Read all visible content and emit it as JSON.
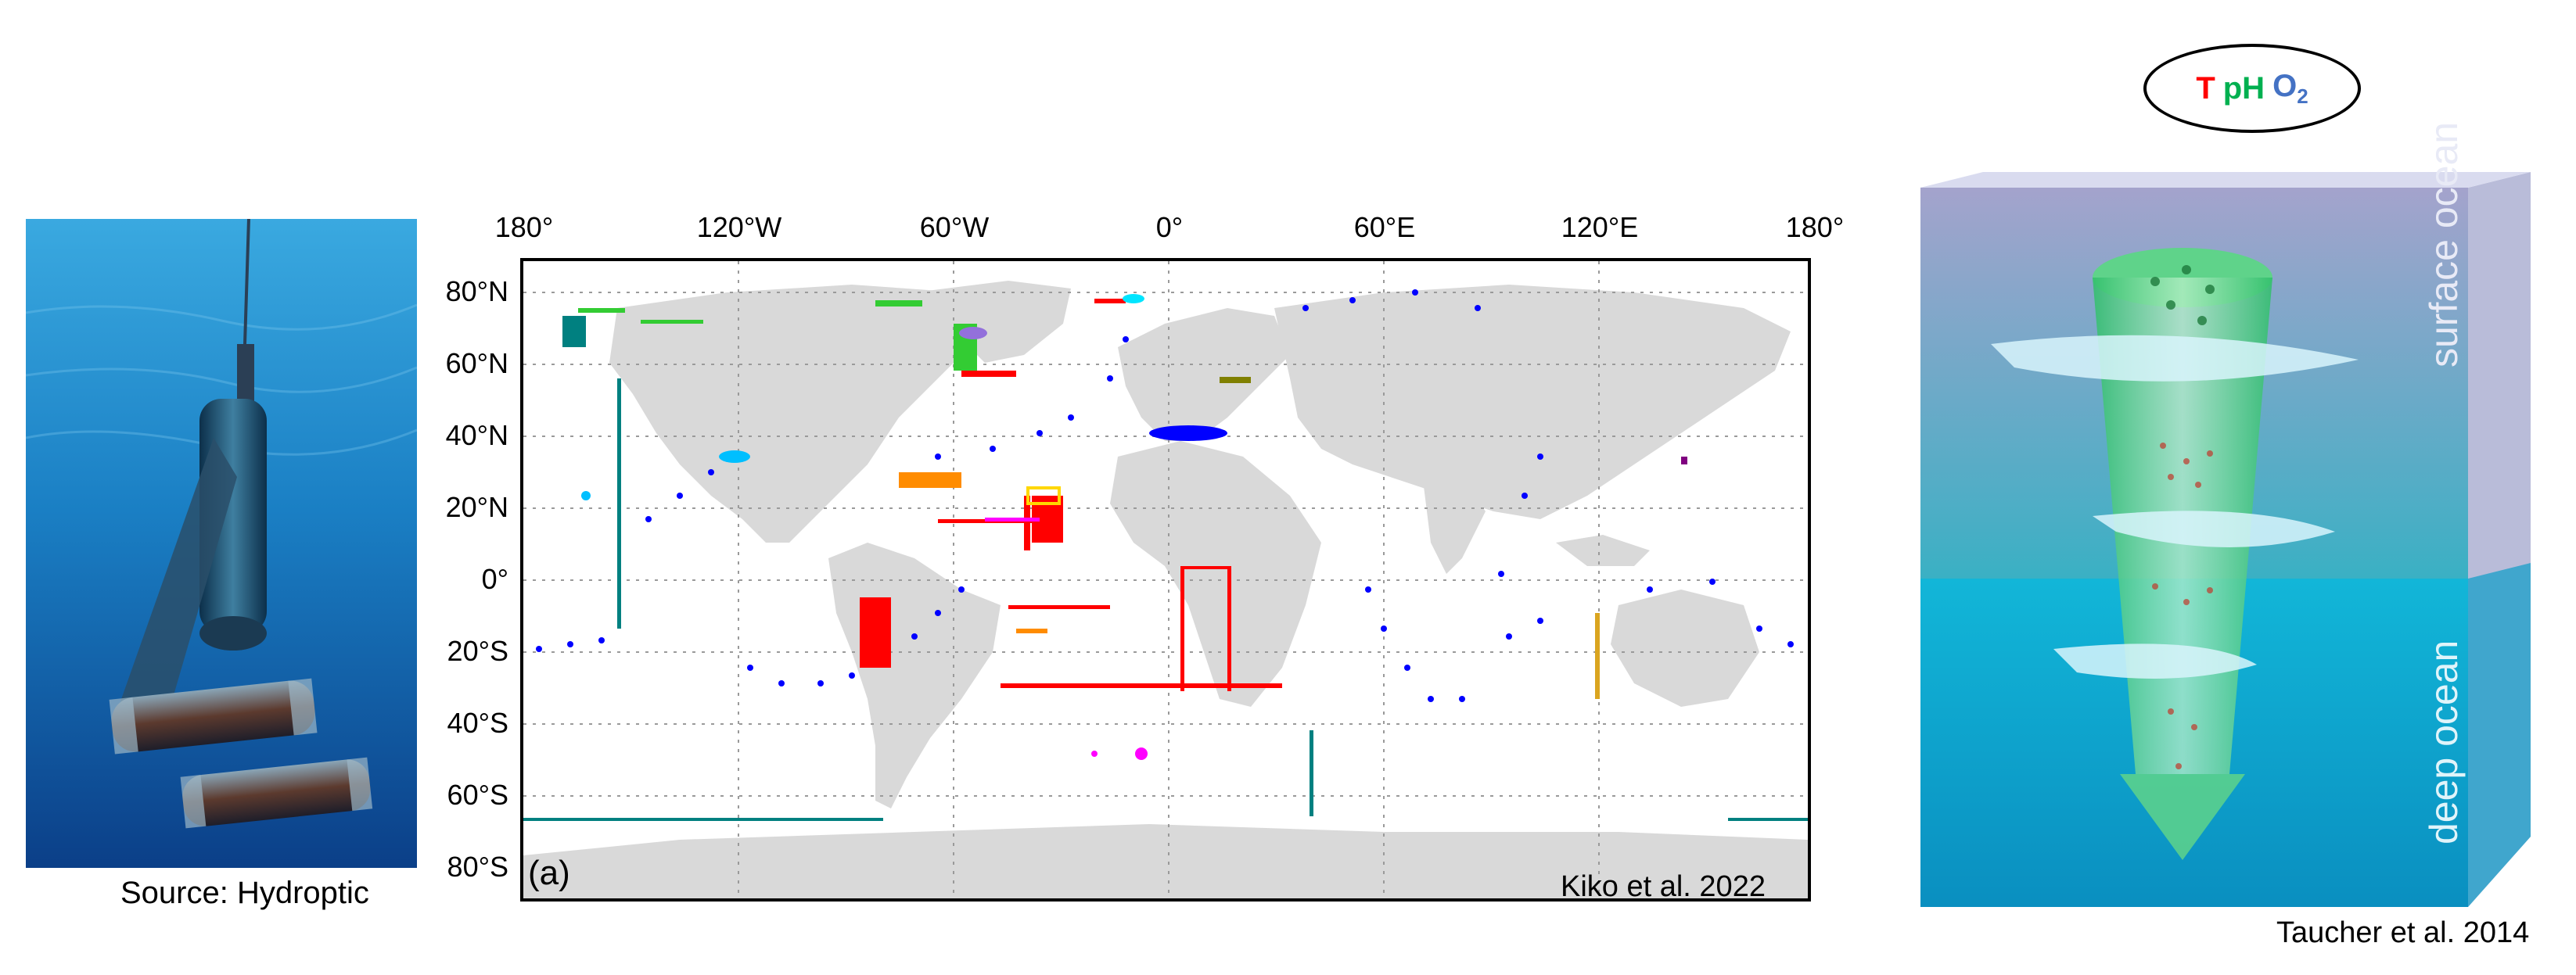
{
  "photo": {
    "caption": "Source: Hydroptic",
    "icon": "underwater-float-instrument"
  },
  "map": {
    "panel_label": "(a)",
    "credit": "Kiko et al. 2022",
    "lon_ticks": [
      "180°",
      "120°W",
      "60°W",
      "0°",
      "60°E",
      "120°E",
      "180°"
    ],
    "lat_ticks": [
      "80°N",
      "60°N",
      "40°N",
      "20°N",
      "0°",
      "20°S",
      "40°S",
      "60°S",
      "80°S"
    ],
    "grid": "dotted",
    "land_color": "#d9d9d9",
    "point_colors": [
      "#0000ff",
      "#ff0000",
      "#008080",
      "#33cc33",
      "#ff8c00",
      "#ff00ff",
      "#00bfff",
      "#9370db",
      "#808000",
      "#daa520",
      "#800080"
    ]
  },
  "diagram": {
    "oval": {
      "t": "T",
      "ph": "pH",
      "o2": "O",
      "o2_sub": "2"
    },
    "surface_label": "surface ocean",
    "deep_label": "deep ocean",
    "credit": "Taucher et al. 2014"
  }
}
